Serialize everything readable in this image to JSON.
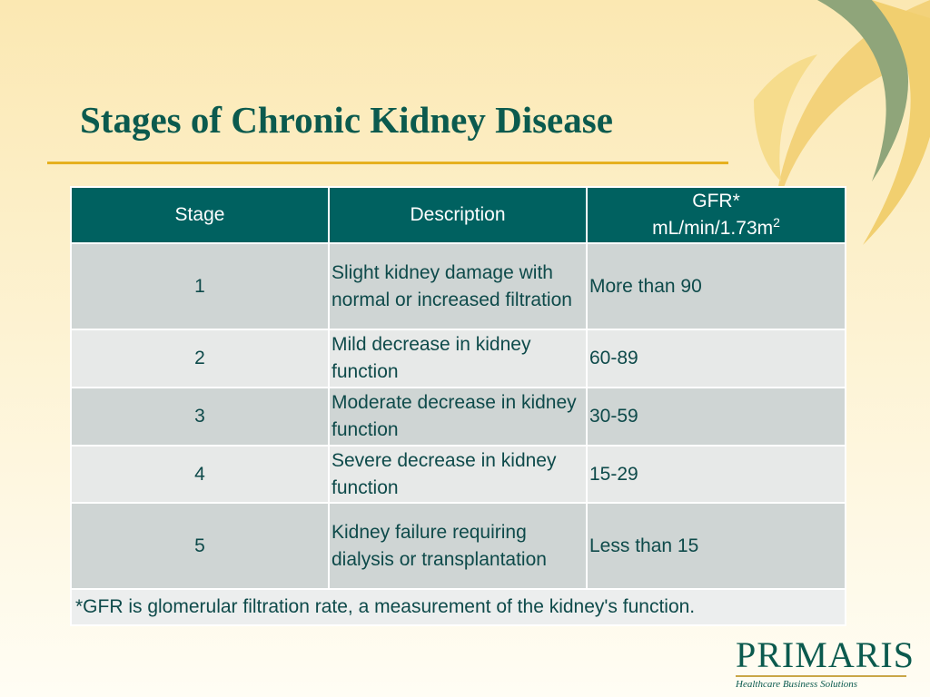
{
  "title": "Stages of Chronic Kidney Disease",
  "table": {
    "header": [
      "Stage",
      "Description",
      {
        "line1": "GFR*",
        "line2": "mL/min/1.73m",
        "sup": "2"
      }
    ],
    "rows": [
      [
        1,
        "Slight kidney damage with normal or increased filtration",
        "More than 90"
      ],
      [
        2,
        "Mild decrease in kidney function",
        "60-89"
      ],
      [
        3,
        "Moderate decrease in kidney function",
        "30-59"
      ],
      [
        4,
        "Severe decrease in kidney function",
        "15-29"
      ],
      [
        5,
        "Kidney failure requiring dialysis or transplantation",
        "Less than 15"
      ]
    ],
    "footnote": "*GFR is glomerular filtration rate, a measurement of the kidney's function."
  },
  "logo": {
    "name": "PRIMARIS",
    "tagline": "Healthcare Business Solutions"
  }
}
